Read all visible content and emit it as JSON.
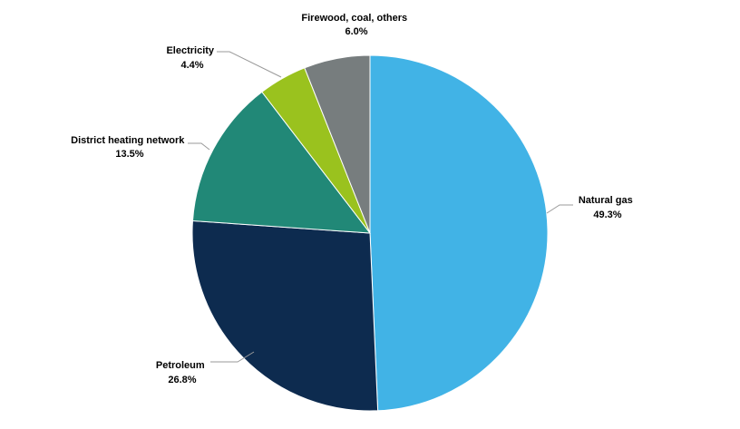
{
  "chart_data": {
    "type": "pie",
    "title": "",
    "slices": [
      {
        "name": "Natural gas",
        "value": 49.3,
        "label": "49.3%",
        "color": "#41b3e6"
      },
      {
        "name": "Petroleum",
        "value": 26.8,
        "label": "26.8%",
        "color": "#0d2b4f"
      },
      {
        "name": "District heating network",
        "value": 13.5,
        "label": "13.5%",
        "color": "#218877"
      },
      {
        "name": "Electricity",
        "value": 4.4,
        "label": "4.4%",
        "color": "#9ac21e"
      },
      {
        "name": "Firewood, coal, others",
        "value": 6.0,
        "label": "6.0%",
        "color": "#777d7e"
      }
    ],
    "start": "12 o'clock",
    "direction": "clockwise",
    "legend": "none"
  }
}
